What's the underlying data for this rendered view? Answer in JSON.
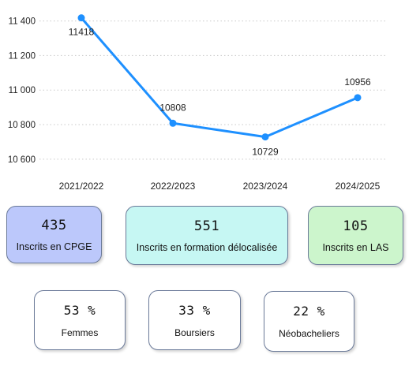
{
  "chart_data": {
    "type": "line",
    "categories": [
      "2021/2022",
      "2022/2023",
      "2023/2024",
      "2024/2025"
    ],
    "values": [
      11418,
      10808,
      10729,
      10956
    ],
    "data_labels": [
      "11418",
      "10808",
      "10729",
      "10956"
    ],
    "y_ticks": [
      10600,
      10800,
      11000,
      11200,
      11400
    ],
    "y_tick_labels": [
      "10 600",
      "10 800",
      "11 000",
      "11 200",
      "11 400"
    ],
    "ylim": [
      10540,
      11430
    ],
    "grid": "horizontal-dotted",
    "colors": {
      "line": "#1e90ff",
      "grid": "#c8c8c8",
      "text": "#222222"
    }
  },
  "kpis": [
    {
      "value": "435",
      "label": "Inscrits en CPGE",
      "color": "#bcc8fb"
    },
    {
      "value": "551",
      "label": "Inscrits en formation délocalisée",
      "color": "#c6f7f3"
    },
    {
      "value": "105",
      "label": "Inscrits en LAS",
      "color": "#ccf5cc"
    }
  ],
  "ratios": [
    {
      "value": "53 %",
      "label": "Femmes"
    },
    {
      "value": "33 %",
      "label": "Boursiers"
    },
    {
      "value": "22 %",
      "label": "Néobacheliers"
    }
  ]
}
